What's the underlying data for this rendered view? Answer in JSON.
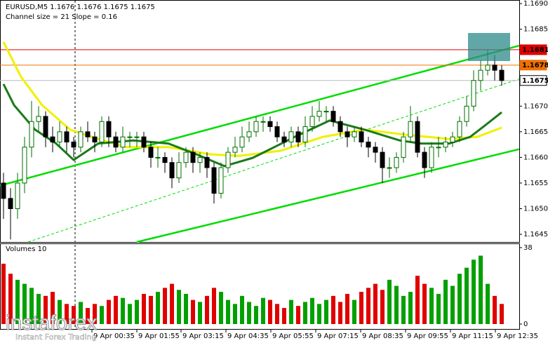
{
  "chart_data": {
    "type": "candlestick",
    "title": "EURUSD,M5  1.1676 1.1676 1.1675 1.1675",
    "subtitle": "Channel size = 21 Slope = 0.16",
    "xlim": [
      -0.5,
      73.5
    ],
    "xticks": [
      {
        "value": 12.6,
        "label": "9 Apr 00:35"
      },
      {
        "value": 19,
        "label": "9 Apr 01:55"
      },
      {
        "value": 25.3,
        "label": "9 Apr 03:15"
      },
      {
        "value": 31.7,
        "label": "9 Apr 04:35"
      },
      {
        "value": 38.1,
        "label": "9 Apr 05:55"
      },
      {
        "value": 44.5,
        "label": "9 Apr 07:15"
      },
      {
        "value": 50.9,
        "label": "9 Apr 08:35"
      },
      {
        "value": 57.3,
        "label": "9 Apr 09:55"
      },
      {
        "value": 63.7,
        "label": "9 Apr 11:15"
      },
      {
        "value": 70.1,
        "label": "9 Apr 12:35"
      }
    ],
    "ylim": [
      1.16435,
      1.16907
    ],
    "yticks": [
      {
        "value": 1.169,
        "label": "1.1690"
      },
      {
        "value": 1.1685,
        "label": "1.1685"
      },
      {
        "value": 1.167,
        "label": "1.1670"
      },
      {
        "value": 1.1665,
        "label": "1.1665"
      },
      {
        "value": 1.166,
        "label": "1.1660"
      },
      {
        "value": 1.1655,
        "label": "1.1655"
      },
      {
        "value": 1.165,
        "label": "1.1650"
      },
      {
        "value": 1.1645,
        "label": "1.1645"
      }
    ],
    "candles": {
      "up_color": "#006e00",
      "down_color": "#000000",
      "open": [
        1.1655,
        1.1652,
        1.165,
        1.1655,
        1.1662,
        1.1667,
        1.1668,
        1.1664,
        1.1663,
        1.1665,
        1.1663,
        1.1662,
        1.1665,
        1.1664,
        1.1663,
        1.1667,
        1.1664,
        1.1662,
        1.1664,
        1.1664,
        1.1664,
        1.1662,
        1.166,
        1.166,
        1.1659,
        1.1656,
        1.1659,
        1.1661,
        1.1659,
        1.166,
        1.1658,
        1.1653,
        1.1658,
        1.1661,
        1.1662,
        1.1664,
        1.1665,
        1.1667,
        1.1667,
        1.1666,
        1.1664,
        1.1663,
        1.1665,
        1.1663,
        1.1666,
        1.1668,
        1.1669,
        1.1669,
        1.1667,
        1.1665,
        1.1664,
        1.1665,
        1.1663,
        1.1662,
        1.1661,
        1.1658,
        1.1658,
        1.166,
        1.1664,
        1.1667,
        1.1661,
        1.1658,
        1.1662,
        1.1662,
        1.1663,
        1.1664,
        1.1667,
        1.167,
        1.1675,
        1.1677,
        1.1678,
        1.1677
      ],
      "high": [
        1.1657,
        1.1654,
        1.1657,
        1.1664,
        1.1671,
        1.167,
        1.1669,
        1.1666,
        1.1667,
        1.1666,
        1.1664,
        1.1666,
        1.1667,
        1.1665,
        1.1668,
        1.1668,
        1.1665,
        1.1666,
        1.1665,
        1.1665,
        1.1665,
        1.1663,
        1.1662,
        1.1661,
        1.166,
        1.1661,
        1.1662,
        1.1662,
        1.1661,
        1.1661,
        1.1659,
        1.1659,
        1.1662,
        1.1664,
        1.1666,
        1.1667,
        1.1668,
        1.1668,
        1.1668,
        1.1667,
        1.1665,
        1.1666,
        1.1666,
        1.1668,
        1.167,
        1.1671,
        1.167,
        1.167,
        1.1668,
        1.1666,
        1.1666,
        1.1666,
        1.1664,
        1.1663,
        1.1662,
        1.166,
        1.1661,
        1.1665,
        1.167,
        1.1668,
        1.1662,
        1.1663,
        1.1664,
        1.1664,
        1.1665,
        1.1668,
        1.1672,
        1.1677,
        1.1679,
        1.1681,
        1.168,
        1.1678
      ],
      "low": [
        1.1648,
        1.1644,
        1.1648,
        1.1653,
        1.166,
        1.1665,
        1.1662,
        1.1661,
        1.1662,
        1.1661,
        1.166,
        1.1661,
        1.1663,
        1.1661,
        1.1662,
        1.1662,
        1.1661,
        1.1661,
        1.1662,
        1.1662,
        1.1661,
        1.1658,
        1.1658,
        1.1657,
        1.1654,
        1.1655,
        1.1658,
        1.1657,
        1.1657,
        1.1656,
        1.1651,
        1.1652,
        1.1657,
        1.166,
        1.1661,
        1.1663,
        1.1664,
        1.1665,
        1.1665,
        1.1663,
        1.1662,
        1.1662,
        1.1662,
        1.1662,
        1.1665,
        1.1667,
        1.1667,
        1.1666,
        1.1664,
        1.1662,
        1.1663,
        1.1662,
        1.166,
        1.1659,
        1.1655,
        1.1656,
        1.1657,
        1.1659,
        1.1663,
        1.166,
        1.1656,
        1.1657,
        1.166,
        1.1661,
        1.1662,
        1.1663,
        1.1666,
        1.1669,
        1.1673,
        1.1676,
        1.1675,
        1.1674
      ],
      "close": [
        1.1652,
        1.165,
        1.1655,
        1.1662,
        1.1667,
        1.1668,
        1.1664,
        1.1663,
        1.1665,
        1.1663,
        1.1662,
        1.1665,
        1.1664,
        1.1663,
        1.1667,
        1.1664,
        1.1662,
        1.1664,
        1.1664,
        1.1664,
        1.1662,
        1.166,
        1.166,
        1.1659,
        1.1656,
        1.1659,
        1.1661,
        1.1659,
        1.166,
        1.1658,
        1.1653,
        1.1658,
        1.1661,
        1.1662,
        1.1664,
        1.1665,
        1.1667,
        1.1667,
        1.1666,
        1.1664,
        1.1663,
        1.1665,
        1.1663,
        1.1666,
        1.1668,
        1.1669,
        1.1669,
        1.1667,
        1.1665,
        1.1664,
        1.1665,
        1.1663,
        1.1662,
        1.1661,
        1.1658,
        1.1658,
        1.166,
        1.1664,
        1.1667,
        1.1661,
        1.1658,
        1.1662,
        1.1662,
        1.1663,
        1.1664,
        1.1667,
        1.167,
        1.1675,
        1.1677,
        1.1678,
        1.1677,
        1.1675
      ]
    },
    "moving_averages": [
      {
        "color": "#f0f000",
        "width": 3,
        "x": [
          0,
          2.5,
          5.5,
          9.5,
          13.5,
          17.5,
          23.5,
          29.5,
          33.5,
          39.5,
          45.5,
          51.5,
          57.5,
          63.5,
          67.5,
          71
        ],
        "values": [
          1.16825,
          1.16757,
          1.16702,
          1.16654,
          1.16636,
          1.1662,
          1.1662,
          1.16606,
          1.16603,
          1.16613,
          1.1664,
          1.16654,
          1.16644,
          1.16636,
          1.1664,
          1.16658
        ]
      },
      {
        "color": "#1a7a1a",
        "width": 3,
        "x": [
          0,
          1.5,
          4.5,
          7.5,
          10,
          13.5,
          18.5,
          23.5,
          27.5,
          31.5,
          35.5,
          41.5,
          46.5,
          51.5,
          56.5,
          59.5,
          63.5,
          66.5,
          68.5,
          71
        ],
        "values": [
          1.16743,
          1.16702,
          1.16654,
          1.16627,
          1.16595,
          1.16627,
          1.16633,
          1.16627,
          1.16606,
          1.16583,
          1.16599,
          1.1664,
          1.16672,
          1.16654,
          1.16633,
          1.16627,
          1.16627,
          1.1664,
          1.16661,
          1.16688
        ]
      }
    ],
    "channel_lines": [
      {
        "color": "#00dd00",
        "dashed": false,
        "x": [
          -0.5,
          73.5
        ],
        "values": [
          1.16545,
          1.16818
        ]
      },
      {
        "color": "#00dd00",
        "dashed": false,
        "x": [
          19,
          73.5
        ],
        "values": [
          1.16435,
          1.16616
        ]
      },
      {
        "color": "#00dd00",
        "dashed": true,
        "x": [
          3.5,
          73.5
        ],
        "values": [
          1.16435,
          1.16753
        ]
      }
    ],
    "price_levels": [
      {
        "value": 1.1681,
        "color": "#e00000",
        "text_color": "#ffffff"
      },
      {
        "value": 1.1678,
        "color": "#f07000",
        "text_color": "#ffffff"
      },
      {
        "value": 1.1675,
        "color": "#ffffff",
        "text_color": "#000000"
      }
    ],
    "volumes": {
      "title": "Volumes 10",
      "up_color": "#00a000",
      "down_color": "#e00000",
      "ylim": [
        0,
        38
      ],
      "yticks": [
        38,
        0
      ],
      "values": [
        30,
        25,
        22,
        20,
        18,
        15,
        14,
        16,
        12,
        10,
        9,
        11,
        8,
        10,
        9,
        12,
        14,
        13,
        10,
        12,
        15,
        14,
        16,
        18,
        20,
        17,
        15,
        12,
        11,
        14,
        18,
        16,
        12,
        10,
        14,
        11,
        9,
        13,
        12,
        10,
        8,
        12,
        9,
        11,
        13,
        10,
        12,
        14,
        11,
        15,
        12,
        16,
        18,
        20,
        17,
        22,
        19,
        14,
        16,
        24,
        20,
        18,
        15,
        22,
        19,
        25,
        28,
        32,
        34,
        20,
        14,
        10
      ]
    },
    "watermark": {
      "brand": "instaforex",
      "tagline": "Instant Forex Trading"
    }
  }
}
